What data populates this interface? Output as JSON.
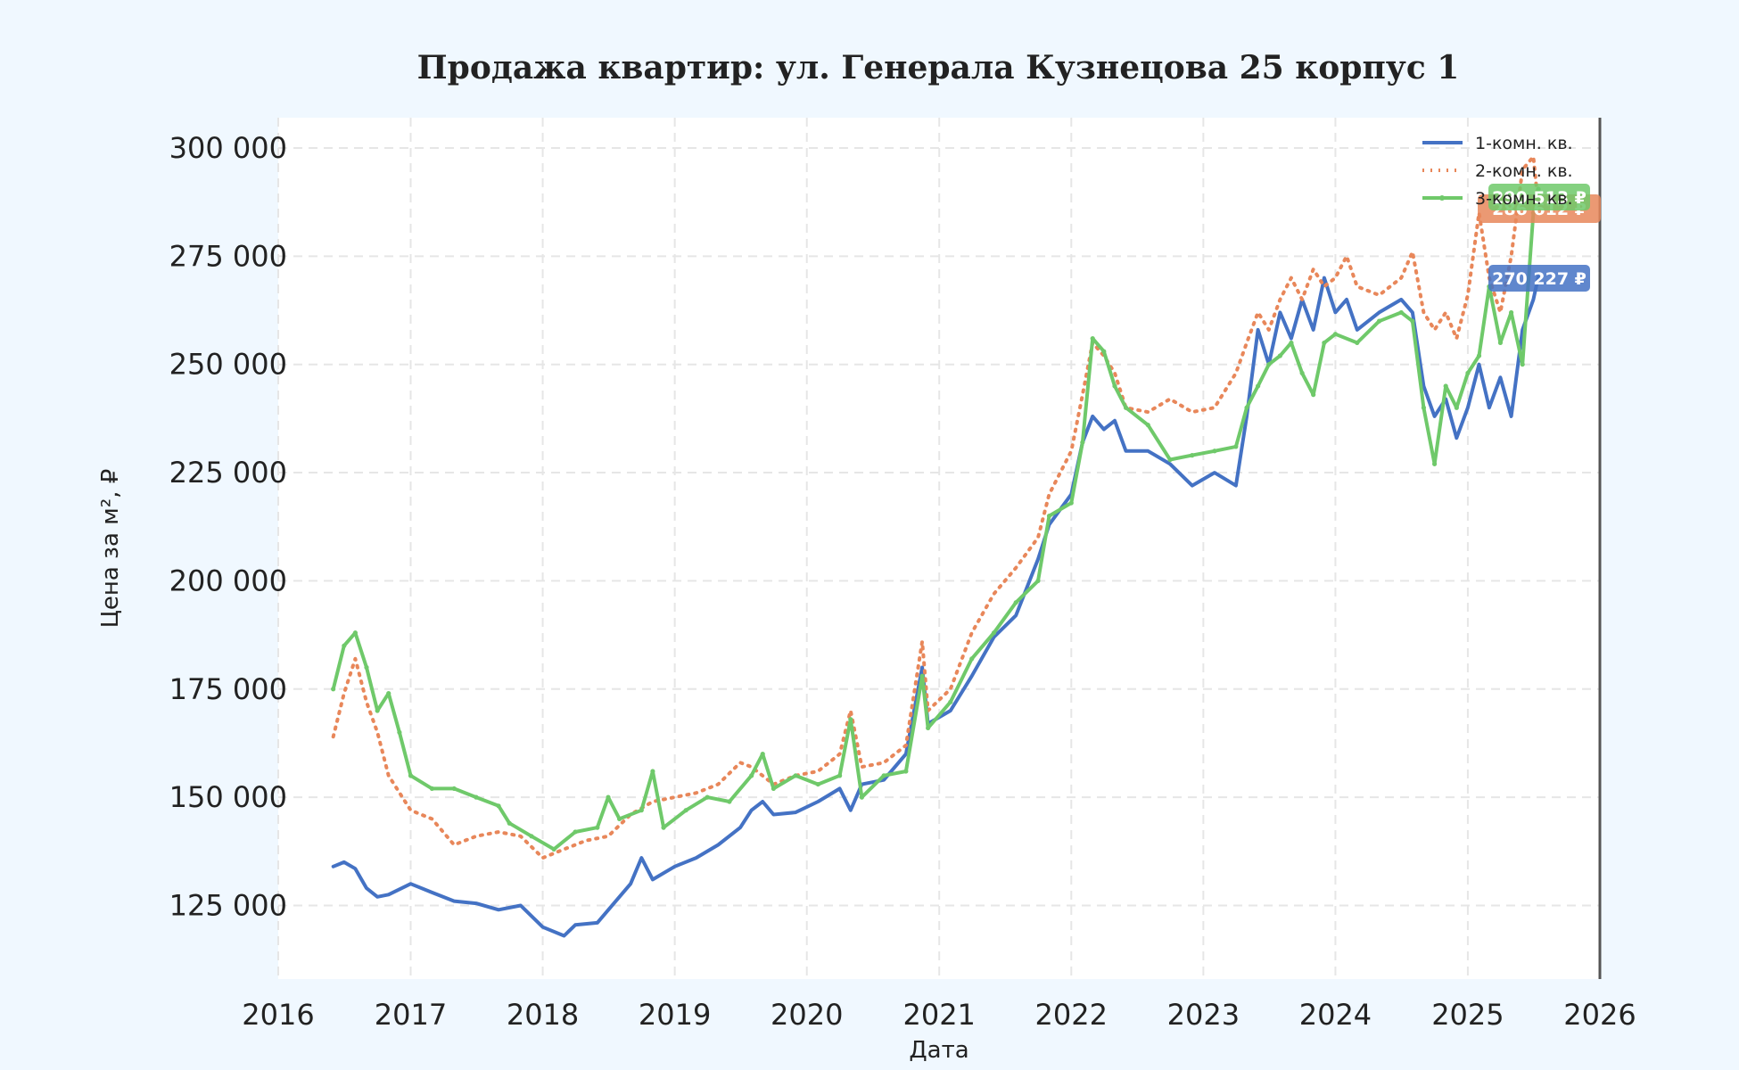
{
  "chart_data": {
    "type": "line",
    "title": "Продажа квартир: ул. Генерала Кузнецова 25 корпус 1",
    "xlabel": "Дата",
    "ylabel": "Цена за м², ₽",
    "xlim": [
      "2016-01-01",
      "2026-01-01"
    ],
    "ylim": [
      108000,
      307000
    ],
    "x_ticks": [
      "2016",
      "2017",
      "2018",
      "2019",
      "2020",
      "2021",
      "2022",
      "2023",
      "2024",
      "2025",
      "2026"
    ],
    "y_ticks": [
      125000,
      150000,
      175000,
      200000,
      225000,
      250000,
      275000,
      300000
    ],
    "y_tick_labels": [
      "125 000",
      "150 000",
      "175 000",
      "200 000",
      "225 000",
      "250 000",
      "275 000",
      "300 000"
    ],
    "grid": true,
    "legend_position": "top-right",
    "vertical_marker": "2026-01-01",
    "series": [
      {
        "name": "1-комн. кв.",
        "color": "#4472c4",
        "style": "solid",
        "last_label": "270 227 ₽",
        "points": [
          [
            "2016-06-01",
            134000
          ],
          [
            "2016-07-01",
            135000
          ],
          [
            "2016-08-01",
            133500
          ],
          [
            "2016-09-01",
            129000
          ],
          [
            "2016-10-01",
            127000
          ],
          [
            "2016-11-01",
            127500
          ],
          [
            "2017-01-01",
            130000
          ],
          [
            "2017-03-01",
            128000
          ],
          [
            "2017-05-01",
            126000
          ],
          [
            "2017-07-01",
            125500
          ],
          [
            "2017-09-01",
            124000
          ],
          [
            "2017-11-01",
            125000
          ],
          [
            "2018-01-01",
            120000
          ],
          [
            "2018-03-01",
            118000
          ],
          [
            "2018-04-01",
            120500
          ],
          [
            "2018-06-01",
            121000
          ],
          [
            "2018-08-01",
            127000
          ],
          [
            "2018-09-01",
            130000
          ],
          [
            "2018-10-01",
            136000
          ],
          [
            "2018-11-01",
            131000
          ],
          [
            "2019-01-01",
            134000
          ],
          [
            "2019-03-01",
            136000
          ],
          [
            "2019-05-01",
            139000
          ],
          [
            "2019-07-01",
            143000
          ],
          [
            "2019-08-01",
            147000
          ],
          [
            "2019-09-01",
            149000
          ],
          [
            "2019-10-01",
            146000
          ],
          [
            "2019-12-01",
            146500
          ],
          [
            "2020-02-01",
            149000
          ],
          [
            "2020-04-01",
            152000
          ],
          [
            "2020-05-01",
            147000
          ],
          [
            "2020-06-01",
            153000
          ],
          [
            "2020-08-01",
            154000
          ],
          [
            "2020-10-01",
            160000
          ],
          [
            "2020-11-15",
            180000
          ],
          [
            "2020-12-01",
            167000
          ],
          [
            "2021-02-01",
            170000
          ],
          [
            "2021-04-01",
            178000
          ],
          [
            "2021-06-01",
            187000
          ],
          [
            "2021-08-01",
            192000
          ],
          [
            "2021-10-01",
            205000
          ],
          [
            "2021-11-01",
            213000
          ],
          [
            "2022-01-01",
            220000
          ],
          [
            "2022-02-01",
            232000
          ],
          [
            "2022-03-01",
            238000
          ],
          [
            "2022-04-01",
            235000
          ],
          [
            "2022-05-01",
            237000
          ],
          [
            "2022-06-01",
            230000
          ],
          [
            "2022-08-01",
            230000
          ],
          [
            "2022-10-01",
            227000
          ],
          [
            "2022-12-01",
            222000
          ],
          [
            "2023-02-01",
            225000
          ],
          [
            "2023-04-01",
            222000
          ],
          [
            "2023-05-01",
            238000
          ],
          [
            "2023-06-01",
            258000
          ],
          [
            "2023-07-01",
            250000
          ],
          [
            "2023-08-01",
            262000
          ],
          [
            "2023-09-01",
            256000
          ],
          [
            "2023-10-01",
            265000
          ],
          [
            "2023-11-01",
            258000
          ],
          [
            "2023-12-01",
            270000
          ],
          [
            "2024-01-01",
            262000
          ],
          [
            "2024-02-01",
            265000
          ],
          [
            "2024-03-01",
            258000
          ],
          [
            "2024-05-01",
            262000
          ],
          [
            "2024-07-01",
            265000
          ],
          [
            "2024-08-01",
            262000
          ],
          [
            "2024-09-01",
            245000
          ],
          [
            "2024-10-01",
            238000
          ],
          [
            "2024-11-01",
            242000
          ],
          [
            "2024-12-01",
            233000
          ],
          [
            "2025-01-01",
            240000
          ],
          [
            "2025-02-01",
            250000
          ],
          [
            "2025-03-01",
            240000
          ],
          [
            "2025-04-01",
            247000
          ],
          [
            "2025-05-01",
            238000
          ],
          [
            "2025-06-01",
            258000
          ],
          [
            "2025-07-01",
            265000
          ],
          [
            "2025-07-15",
            270227
          ]
        ]
      },
      {
        "name": "2-комн. кв.",
        "color": "#e8875a",
        "style": "dotted",
        "last_label": "286 612 ₽",
        "points": [
          [
            "2016-06-01",
            164000
          ],
          [
            "2016-07-01",
            174000
          ],
          [
            "2016-08-01",
            182000
          ],
          [
            "2016-09-01",
            172000
          ],
          [
            "2016-10-01",
            165000
          ],
          [
            "2016-11-01",
            155000
          ],
          [
            "2017-01-01",
            147000
          ],
          [
            "2017-03-01",
            145000
          ],
          [
            "2017-05-01",
            139000
          ],
          [
            "2017-07-01",
            141000
          ],
          [
            "2017-09-01",
            142000
          ],
          [
            "2017-11-01",
            141000
          ],
          [
            "2018-01-01",
            136000
          ],
          [
            "2018-03-01",
            138000
          ],
          [
            "2018-05-01",
            140000
          ],
          [
            "2018-07-01",
            141000
          ],
          [
            "2018-09-01",
            146000
          ],
          [
            "2018-11-01",
            149000
          ],
          [
            "2019-01-01",
            150000
          ],
          [
            "2019-03-01",
            151000
          ],
          [
            "2019-05-01",
            153000
          ],
          [
            "2019-07-01",
            158000
          ],
          [
            "2019-08-01",
            157000
          ],
          [
            "2019-10-01",
            153000
          ],
          [
            "2019-12-01",
            155000
          ],
          [
            "2020-02-01",
            156000
          ],
          [
            "2020-04-01",
            160000
          ],
          [
            "2020-05-01",
            170000
          ],
          [
            "2020-06-01",
            157000
          ],
          [
            "2020-08-01",
            158000
          ],
          [
            "2020-10-01",
            162000
          ],
          [
            "2020-11-15",
            186000
          ],
          [
            "2020-12-01",
            170000
          ],
          [
            "2021-02-01",
            175000
          ],
          [
            "2021-04-01",
            188000
          ],
          [
            "2021-06-01",
            197000
          ],
          [
            "2021-08-01",
            203000
          ],
          [
            "2021-10-01",
            210000
          ],
          [
            "2021-11-01",
            220000
          ],
          [
            "2022-01-01",
            230000
          ],
          [
            "2022-02-01",
            243000
          ],
          [
            "2022-03-01",
            255000
          ],
          [
            "2022-04-01",
            252000
          ],
          [
            "2022-05-01",
            248000
          ],
          [
            "2022-06-01",
            240000
          ],
          [
            "2022-08-01",
            239000
          ],
          [
            "2022-10-01",
            242000
          ],
          [
            "2022-12-01",
            239000
          ],
          [
            "2023-02-01",
            240000
          ],
          [
            "2023-04-01",
            248000
          ],
          [
            "2023-05-01",
            255000
          ],
          [
            "2023-06-01",
            262000
          ],
          [
            "2023-07-01",
            258000
          ],
          [
            "2023-08-01",
            265000
          ],
          [
            "2023-09-01",
            270000
          ],
          [
            "2023-10-01",
            265000
          ],
          [
            "2023-11-01",
            272000
          ],
          [
            "2023-12-01",
            268000
          ],
          [
            "2024-01-01",
            270000
          ],
          [
            "2024-02-01",
            275000
          ],
          [
            "2024-03-01",
            268000
          ],
          [
            "2024-05-01",
            266000
          ],
          [
            "2024-07-01",
            270000
          ],
          [
            "2024-08-01",
            276000
          ],
          [
            "2024-09-01",
            262000
          ],
          [
            "2024-10-01",
            258000
          ],
          [
            "2024-11-01",
            262000
          ],
          [
            "2024-12-01",
            256000
          ],
          [
            "2025-01-01",
            266000
          ],
          [
            "2025-02-01",
            285000
          ],
          [
            "2025-03-01",
            270000
          ],
          [
            "2025-04-01",
            262000
          ],
          [
            "2025-05-01",
            275000
          ],
          [
            "2025-06-01",
            295000
          ],
          [
            "2025-07-01",
            298000
          ],
          [
            "2025-07-15",
            286612
          ]
        ]
      },
      {
        "name": "3-комн. кв.",
        "color": "#6fc96a",
        "style": "solid-marker",
        "last_label": "290 513 ₽",
        "points": [
          [
            "2016-06-01",
            175000
          ],
          [
            "2016-07-01",
            185000
          ],
          [
            "2016-08-01",
            188000
          ],
          [
            "2016-09-01",
            180000
          ],
          [
            "2016-10-01",
            170000
          ],
          [
            "2016-11-01",
            174000
          ],
          [
            "2016-12-01",
            165000
          ],
          [
            "2017-01-01",
            155000
          ],
          [
            "2017-03-01",
            152000
          ],
          [
            "2017-05-01",
            152000
          ],
          [
            "2017-07-01",
            150000
          ],
          [
            "2017-09-01",
            148000
          ],
          [
            "2017-10-01",
            144000
          ],
          [
            "2017-12-01",
            141000
          ],
          [
            "2018-02-01",
            138000
          ],
          [
            "2018-04-01",
            142000
          ],
          [
            "2018-06-01",
            143000
          ],
          [
            "2018-07-01",
            150000
          ],
          [
            "2018-08-01",
            145000
          ],
          [
            "2018-10-01",
            147000
          ],
          [
            "2018-11-01",
            156000
          ],
          [
            "2018-12-01",
            143000
          ],
          [
            "2019-02-01",
            147000
          ],
          [
            "2019-04-01",
            150000
          ],
          [
            "2019-06-01",
            149000
          ],
          [
            "2019-08-01",
            155000
          ],
          [
            "2019-09-01",
            160000
          ],
          [
            "2019-10-01",
            152000
          ],
          [
            "2019-12-01",
            155000
          ],
          [
            "2020-02-01",
            153000
          ],
          [
            "2020-04-01",
            155000
          ],
          [
            "2020-05-01",
            168000
          ],
          [
            "2020-06-01",
            150000
          ],
          [
            "2020-08-01",
            155000
          ],
          [
            "2020-10-01",
            156000
          ],
          [
            "2020-11-15",
            178000
          ],
          [
            "2020-12-01",
            166000
          ],
          [
            "2021-02-01",
            172000
          ],
          [
            "2021-04-01",
            182000
          ],
          [
            "2021-06-01",
            188000
          ],
          [
            "2021-08-01",
            195000
          ],
          [
            "2021-10-01",
            200000
          ],
          [
            "2021-11-01",
            215000
          ],
          [
            "2022-01-01",
            218000
          ],
          [
            "2022-02-01",
            232000
          ],
          [
            "2022-03-01",
            256000
          ],
          [
            "2022-04-01",
            253000
          ],
          [
            "2022-05-01",
            245000
          ],
          [
            "2022-06-01",
            240000
          ],
          [
            "2022-08-01",
            236000
          ],
          [
            "2022-10-01",
            228000
          ],
          [
            "2022-12-01",
            229000
          ],
          [
            "2023-02-01",
            230000
          ],
          [
            "2023-04-01",
            231000
          ],
          [
            "2023-05-01",
            240000
          ],
          [
            "2023-06-01",
            245000
          ],
          [
            "2023-07-01",
            250000
          ],
          [
            "2023-08-01",
            252000
          ],
          [
            "2023-09-01",
            255000
          ],
          [
            "2023-10-01",
            248000
          ],
          [
            "2023-11-01",
            243000
          ],
          [
            "2023-12-01",
            255000
          ],
          [
            "2024-01-01",
            257000
          ],
          [
            "2024-03-01",
            255000
          ],
          [
            "2024-05-01",
            260000
          ],
          [
            "2024-07-01",
            262000
          ],
          [
            "2024-08-01",
            260000
          ],
          [
            "2024-09-01",
            240000
          ],
          [
            "2024-10-01",
            227000
          ],
          [
            "2024-11-01",
            245000
          ],
          [
            "2024-12-01",
            240000
          ],
          [
            "2025-01-01",
            248000
          ],
          [
            "2025-02-01",
            252000
          ],
          [
            "2025-03-01",
            268000
          ],
          [
            "2025-04-01",
            255000
          ],
          [
            "2025-05-01",
            262000
          ],
          [
            "2025-06-01",
            250000
          ],
          [
            "2025-07-01",
            285000
          ],
          [
            "2025-07-15",
            290513
          ]
        ]
      }
    ]
  }
}
